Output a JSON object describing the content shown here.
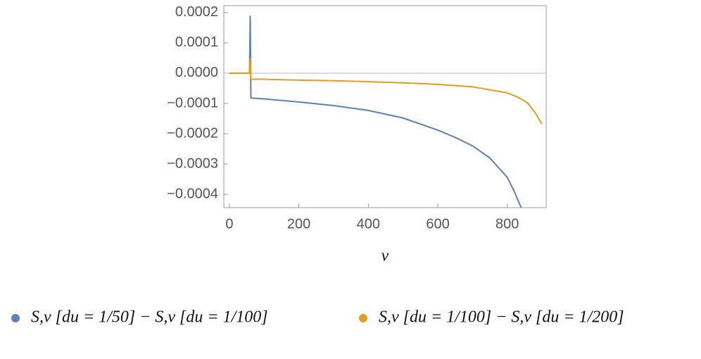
{
  "chart_data": {
    "type": "line",
    "xlabel": "v",
    "x": [
      0,
      20,
      40,
      58,
      60,
      62,
      100,
      200,
      300,
      400,
      500,
      600,
      650,
      700,
      750,
      800,
      820,
      840,
      860,
      880,
      900
    ],
    "series": [
      {
        "name": "S,v [du = 1/50] − S,v [du = 1/100]",
        "color": "#5e81b5",
        "values": [
          0,
          0,
          0,
          0,
          0.00019,
          -8.2e-05,
          -8.5e-05,
          -9.5e-05,
          -0.000107,
          -0.000123,
          -0.000148,
          -0.000188,
          -0.000212,
          -0.00024,
          -0.00028,
          -0.000344,
          -0.00039,
          -0.000444,
          null,
          null,
          null
        ]
      },
      {
        "name": "S,v [du = 1/100] − S,v [du = 1/200]",
        "color": "#e19c24",
        "values": [
          0,
          0,
          0,
          0,
          4.9e-05,
          -2e-05,
          -2e-05,
          -2.3e-05,
          -2.5e-05,
          -2.8e-05,
          -3.2e-05,
          -3.7e-05,
          -4.1e-05,
          -4.5e-05,
          -5.5e-05,
          -6.5e-05,
          -7.4e-05,
          -8.5e-05,
          -0.0001,
          -0.00013,
          -0.000168
        ]
      }
    ],
    "xlim": [
      -16,
      912
    ],
    "ylim": [
      -0.000444,
      0.000223
    ],
    "xticks": [
      0,
      200,
      400,
      600,
      800
    ],
    "yticks": [
      {
        "value": 0.0002,
        "label": "0.0002"
      },
      {
        "value": 0.0001,
        "label": "0.0001"
      },
      {
        "value": 0,
        "label": "0.0000"
      },
      {
        "value": -0.0001,
        "label": "−0.0001"
      },
      {
        "value": -0.0002,
        "label": "−0.0002"
      },
      {
        "value": -0.0003,
        "label": "−0.0003"
      },
      {
        "value": -0.0004,
        "label": "−0.0004"
      }
    ],
    "legend": "bottom"
  }
}
